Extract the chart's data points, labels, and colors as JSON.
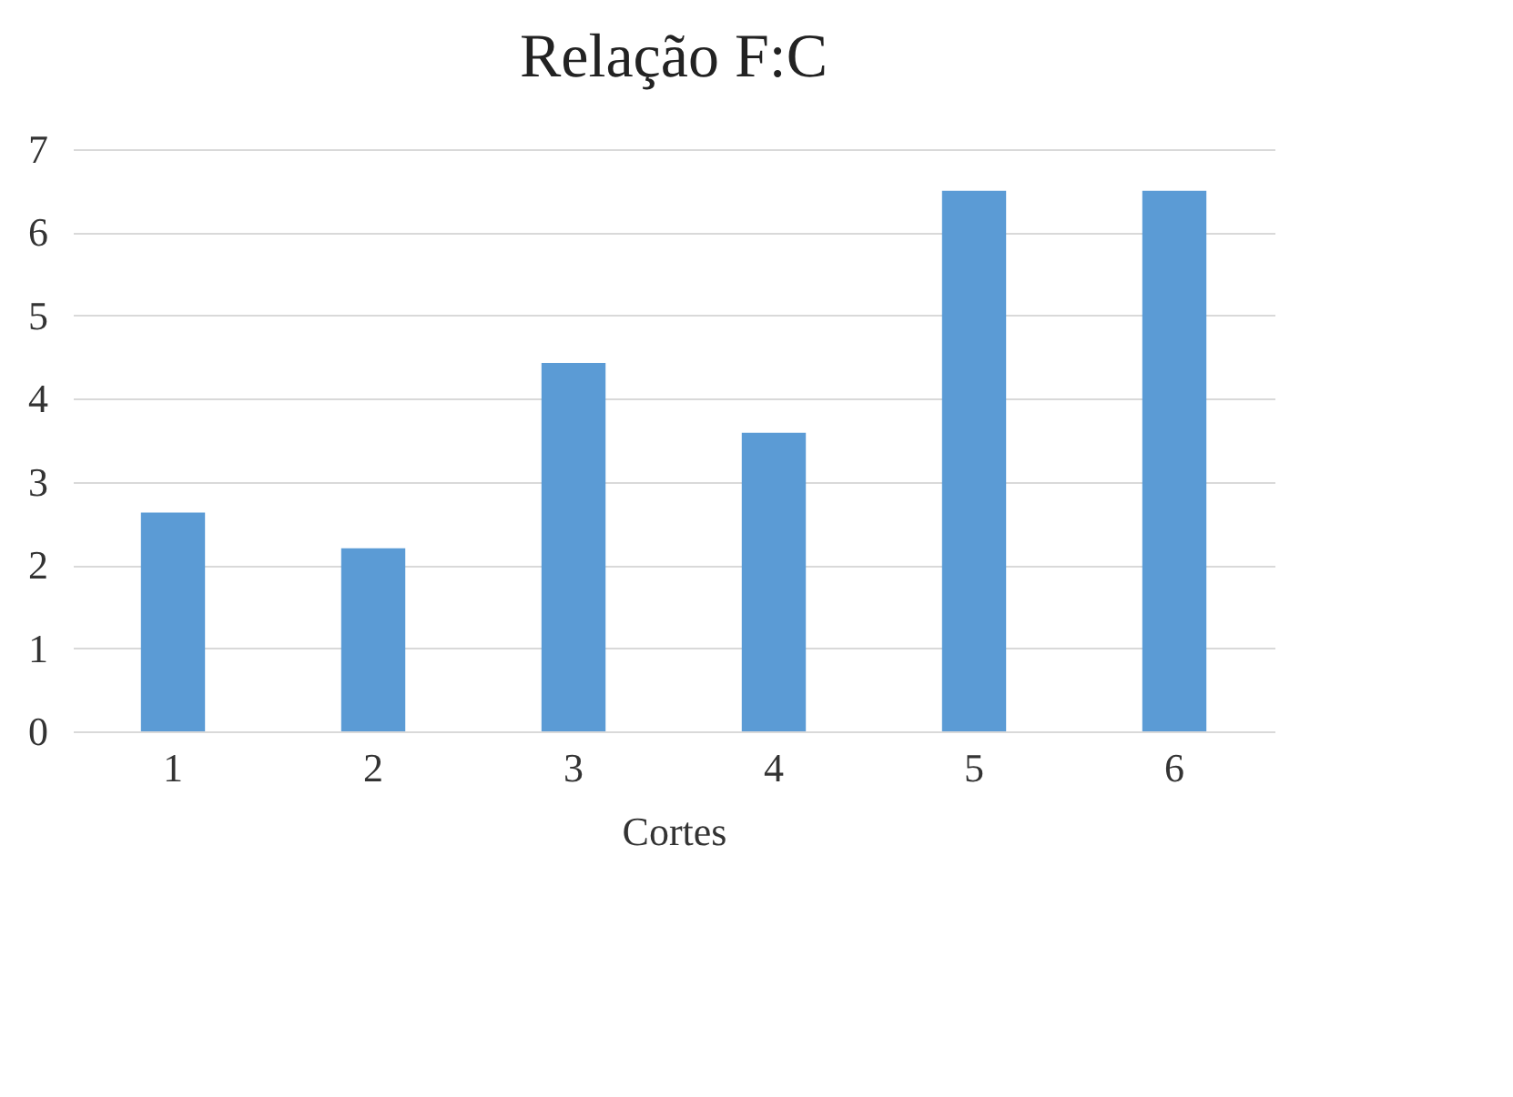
{
  "chart_data": {
    "type": "bar",
    "title": "Relação F:C",
    "xlabel": "Cortes",
    "categories": [
      "1",
      "2",
      "3",
      "4",
      "5",
      "6"
    ],
    "values": [
      2.63,
      2.2,
      4.43,
      3.59,
      6.5,
      6.5
    ],
    "color": "#5b9bd5",
    "ylim": [
      0,
      7
    ],
    "yticks": [
      0,
      1,
      2,
      3,
      4,
      5,
      6,
      7
    ],
    "grid": "y"
  }
}
